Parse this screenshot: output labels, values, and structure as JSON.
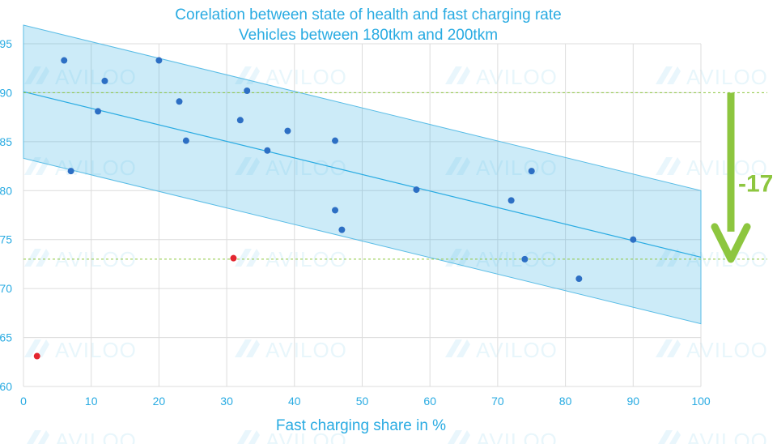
{
  "chart_data": {
    "type": "scatter",
    "title": "Corelation between state of health and fast charging rate",
    "subtitle": "Vehicles between 180tkm and 200tkm",
    "xlabel": "Fast charging share in %",
    "ylabel": "",
    "xlim": [
      0,
      100
    ],
    "ylim": [
      60,
      95
    ],
    "xticks": [
      0,
      10,
      20,
      30,
      40,
      50,
      60,
      70,
      80,
      90,
      100
    ],
    "yticks": [
      60,
      65,
      70,
      75,
      80,
      85,
      90,
      95
    ],
    "grid": true,
    "series": [
      {
        "name": "vehicles",
        "color": "#2d6fc4",
        "points": [
          {
            "x": 6,
            "y": 93.3
          },
          {
            "x": 7,
            "y": 82
          },
          {
            "x": 11,
            "y": 88.1
          },
          {
            "x": 12,
            "y": 91.2
          },
          {
            "x": 20,
            "y": 93.3
          },
          {
            "x": 23,
            "y": 89.1
          },
          {
            "x": 24,
            "y": 85.1
          },
          {
            "x": 32,
            "y": 87.2
          },
          {
            "x": 33,
            "y": 90.2
          },
          {
            "x": 36,
            "y": 84.1
          },
          {
            "x": 39,
            "y": 86.1
          },
          {
            "x": 46,
            "y": 85.1
          },
          {
            "x": 46,
            "y": 78
          },
          {
            "x": 47,
            "y": 76
          },
          {
            "x": 58,
            "y": 80.1
          },
          {
            "x": 72,
            "y": 79
          },
          {
            "x": 74,
            "y": 73
          },
          {
            "x": 75,
            "y": 82
          },
          {
            "x": 82,
            "y": 71
          },
          {
            "x": 90,
            "y": 75
          }
        ]
      },
      {
        "name": "outliers",
        "color": "#e3262f",
        "points": [
          {
            "x": 2,
            "y": 63.1
          },
          {
            "x": 31,
            "y": 73.1
          }
        ]
      }
    ],
    "trend": {
      "x0": 0,
      "y0": 90.1,
      "x1": 100,
      "y1": 73.2,
      "band": 6.8,
      "color": "#29abe2"
    },
    "reference_lines": [
      {
        "y": 90
      },
      {
        "y": 73
      }
    ],
    "annotation": {
      "text": "-17",
      "color": "#8dc63f"
    },
    "watermark": "AVILOO"
  }
}
